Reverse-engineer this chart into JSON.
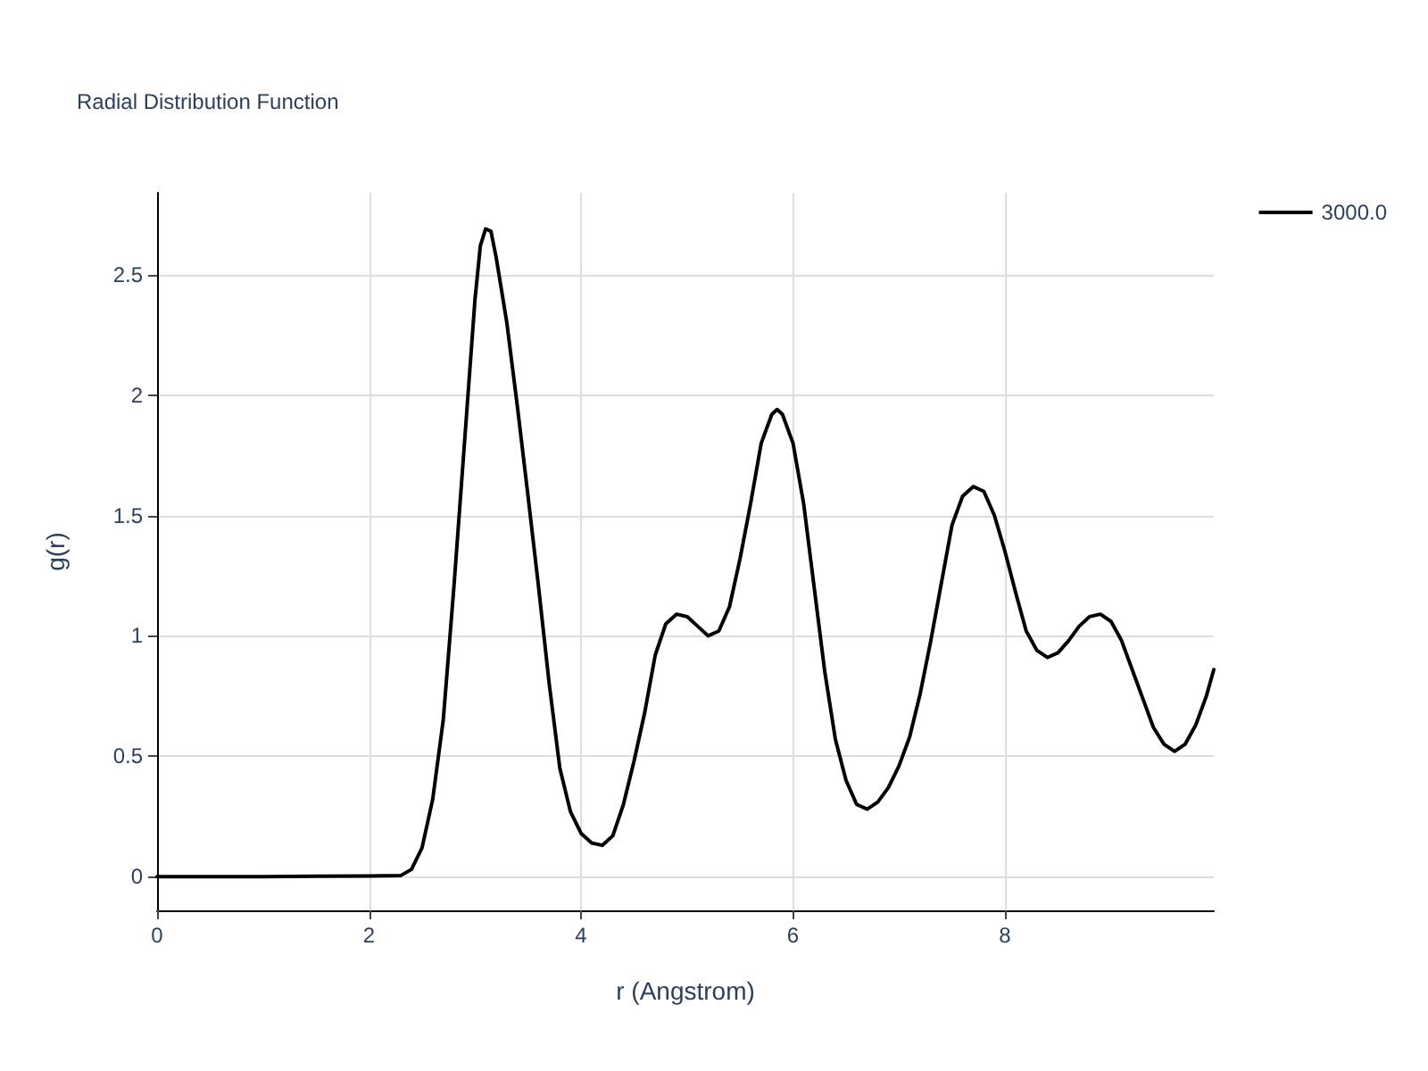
{
  "chart_data": {
    "type": "line",
    "title": "Radial Distribution Function",
    "xlabel": "r (Angstrom)",
    "ylabel": "g(r)",
    "xlim": [
      0,
      9.97
    ],
    "xticks": [
      0,
      2,
      4,
      6,
      8
    ],
    "ylim": [
      -0.14,
      2.84
    ],
    "yticks": [
      0,
      0.5,
      1,
      1.5,
      2,
      2.5
    ],
    "grid": true,
    "legend": "top right",
    "marker": "none",
    "line_style": "solid",
    "series": [
      {
        "name": "3000.0",
        "color": "#000000",
        "x": [
          0,
          0.5,
          1,
          1.5,
          2,
          2.3,
          2.4,
          2.5,
          2.6,
          2.7,
          2.8,
          2.9,
          3.0,
          3.05,
          3.1,
          3.15,
          3.2,
          3.3,
          3.4,
          3.5,
          3.6,
          3.7,
          3.8,
          3.9,
          4.0,
          4.1,
          4.2,
          4.3,
          4.4,
          4.5,
          4.6,
          4.7,
          4.8,
          4.9,
          5.0,
          5.1,
          5.2,
          5.3,
          5.4,
          5.5,
          5.6,
          5.7,
          5.8,
          5.85,
          5.9,
          6.0,
          6.1,
          6.2,
          6.3,
          6.4,
          6.5,
          6.6,
          6.7,
          6.8,
          6.9,
          7.0,
          7.1,
          7.2,
          7.3,
          7.4,
          7.5,
          7.6,
          7.7,
          7.8,
          7.9,
          8.0,
          8.1,
          8.2,
          8.3,
          8.4,
          8.5,
          8.6,
          8.7,
          8.8,
          8.9,
          9.0,
          9.1,
          9.2,
          9.3,
          9.4,
          9.5,
          9.6,
          9.7,
          9.8,
          9.9,
          9.97
        ],
        "values": [
          0,
          0,
          0,
          0.002,
          0.003,
          0.005,
          0.03,
          0.12,
          0.32,
          0.65,
          1.2,
          1.8,
          2.4,
          2.62,
          2.69,
          2.68,
          2.57,
          2.3,
          1.95,
          1.58,
          1.2,
          0.8,
          0.45,
          0.27,
          0.18,
          0.14,
          0.13,
          0.17,
          0.3,
          0.48,
          0.68,
          0.92,
          1.05,
          1.09,
          1.08,
          1.04,
          1.0,
          1.02,
          1.12,
          1.32,
          1.55,
          1.8,
          1.92,
          1.94,
          1.92,
          1.8,
          1.55,
          1.2,
          0.85,
          0.57,
          0.4,
          0.3,
          0.28,
          0.31,
          0.37,
          0.46,
          0.58,
          0.76,
          0.98,
          1.22,
          1.46,
          1.58,
          1.62,
          1.6,
          1.5,
          1.35,
          1.18,
          1.02,
          0.94,
          0.91,
          0.93,
          0.98,
          1.04,
          1.08,
          1.09,
          1.06,
          0.98,
          0.86,
          0.74,
          0.62,
          0.55,
          0.52,
          0.55,
          0.63,
          0.75,
          0.86
        ]
      }
    ]
  }
}
